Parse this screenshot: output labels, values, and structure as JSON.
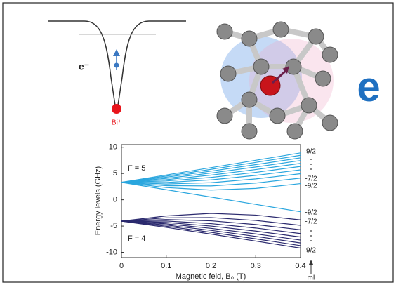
{
  "illustration": {
    "electron_label": "e⁻",
    "donor_label": "Bi⁺",
    "big_letter": "e"
  },
  "chart_data": {
    "type": "line",
    "xlabel": "Magnetic feld, B₀ (T)",
    "ylabel": "Energy levels (GHz)",
    "annotations": [
      "F = 5",
      "F = 4"
    ],
    "right_labels": [
      "9/2",
      "-7/2",
      "-9/2",
      "-9/2",
      "-7/2",
      "9/2"
    ],
    "right_axis_label": "mI",
    "x": [
      0,
      0.1,
      0.2,
      0.3,
      0.4
    ],
    "xlim": [
      0,
      0.4
    ],
    "xticks": [
      0,
      0.1,
      0.2,
      0.3,
      0.4
    ],
    "ylim": [
      -11,
      10.5
    ],
    "yticks": [
      -10,
      -5,
      0,
      5,
      10
    ],
    "series": [
      {
        "color": "#2aa6de",
        "values": [
          3.32,
          4.72,
          6.12,
          7.52,
          8.92
        ]
      },
      {
        "color": "#2aa6de",
        "values": [
          3.32,
          4.51,
          5.79,
          7.12,
          8.46
        ]
      },
      {
        "color": "#2aa6de",
        "values": [
          3.32,
          4.3,
          5.45,
          6.69,
          7.98
        ]
      },
      {
        "color": "#2aa6de",
        "values": [
          3.32,
          4.07,
          5.08,
          6.24,
          7.47
        ]
      },
      {
        "color": "#2aa6de",
        "values": [
          3.32,
          3.83,
          4.69,
          5.75,
          6.93
        ]
      },
      {
        "color": "#2aa6de",
        "values": [
          3.32,
          3.58,
          4.26,
          5.22,
          6.34
        ]
      },
      {
        "color": "#2aa6de",
        "values": [
          3.32,
          3.3,
          3.79,
          4.64,
          5.69
        ]
      },
      {
        "color": "#2aa6de",
        "values": [
          3.32,
          3.01,
          3.26,
          3.97,
          4.96
        ]
      },
      {
        "color": "#2aa6de",
        "values": [
          3.32,
          2.69,
          2.64,
          3.19,
          4.12
        ]
      },
      {
        "color": "#2aa6de",
        "values": [
          3.32,
          2.33,
          1.85,
          2.17,
          3.08
        ]
      },
      {
        "color": "#2aa6de",
        "values": [
          3.32,
          1.92,
          0.52,
          -0.88,
          -2.28
        ]
      },
      {
        "color": "#2b2a6e",
        "values": [
          -4.06,
          -5.25,
          -6.53,
          -7.85,
          -9.2
        ]
      },
      {
        "color": "#2b2a6e",
        "values": [
          -4.06,
          -5.03,
          -6.19,
          -7.43,
          -8.72
        ]
      },
      {
        "color": "#2b2a6e",
        "values": [
          -4.06,
          -4.81,
          -5.82,
          -6.97,
          -8.21
        ]
      },
      {
        "color": "#2b2a6e",
        "values": [
          -4.06,
          -4.57,
          -5.43,
          -6.49,
          -7.67
        ]
      },
      {
        "color": "#2b2a6e",
        "values": [
          -4.06,
          -4.31,
          -5.0,
          -5.96,
          -7.08
        ]
      },
      {
        "color": "#2b2a6e",
        "values": [
          -4.06,
          -4.04,
          -4.53,
          -5.37,
          -6.43
        ]
      },
      {
        "color": "#2b2a6e",
        "values": [
          -4.06,
          -3.75,
          -4.0,
          -4.71,
          -5.7
        ]
      },
      {
        "color": "#2b2a6e",
        "values": [
          -4.06,
          -3.43,
          -3.38,
          -3.93,
          -4.86
        ]
      },
      {
        "color": "#2b2a6e",
        "values": [
          -4.06,
          -3.07,
          -2.59,
          -2.91,
          -3.82
        ]
      }
    ]
  }
}
